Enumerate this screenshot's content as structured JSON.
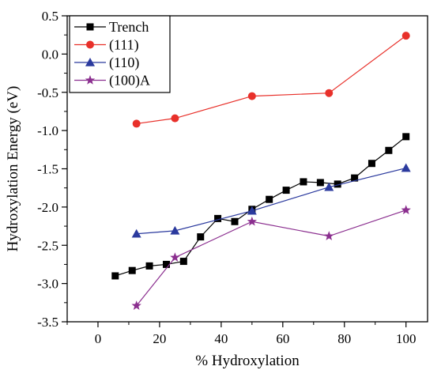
{
  "chart_data": {
    "type": "line",
    "title": "",
    "xlabel": "% Hydroxylation",
    "ylabel": "Hydroxylation Energy (eV)",
    "xlim": [
      -10,
      107
    ],
    "ylim": [
      -3.5,
      0.5
    ],
    "xticks": [
      0,
      20,
      40,
      60,
      80,
      100
    ],
    "yticks": [
      0.5,
      0.0,
      -0.5,
      -1.0,
      -1.5,
      -2.0,
      -2.5,
      -3.0,
      -3.5
    ],
    "ytick_labels": [
      "0.5",
      "0.0",
      "-0.5",
      "-1.0",
      "-1.5",
      "-2.0",
      "-2.5",
      "-3.0",
      "-3.5"
    ],
    "grid": false,
    "legend_position": "top-left",
    "series": [
      {
        "name": "Trench",
        "color": "#000000",
        "marker": "square",
        "x": [
          5.6,
          11.1,
          16.7,
          22.2,
          27.8,
          33.3,
          38.9,
          44.4,
          50.0,
          55.6,
          61.1,
          66.7,
          72.2,
          77.8,
          83.3,
          88.9,
          94.4,
          100.0
        ],
        "y": [
          -2.9,
          -2.83,
          -2.77,
          -2.75,
          -2.71,
          -2.39,
          -2.15,
          -2.19,
          -2.03,
          -1.9,
          -1.78,
          -1.67,
          -1.68,
          -1.7,
          -1.62,
          -1.43,
          -1.26,
          -1.08
        ]
      },
      {
        "name": "(111)",
        "color": "#e8302a",
        "marker": "circle",
        "x": [
          12.5,
          25.0,
          50.0,
          75.0,
          100.0
        ],
        "y": [
          -0.91,
          -0.84,
          -0.55,
          -0.51,
          0.24
        ]
      },
      {
        "name": "(110)",
        "color": "#2b3a9e",
        "marker": "triangle",
        "x": [
          12.5,
          25.0,
          50.0,
          75.0,
          100.0
        ],
        "y": [
          -2.35,
          -2.31,
          -2.05,
          -1.74,
          -1.49
        ]
      },
      {
        "name": "(100)A",
        "color": "#8b2f8f",
        "marker": "star",
        "x": [
          12.5,
          25.0,
          50.0,
          75.0,
          100.0
        ],
        "y": [
          -3.29,
          -2.66,
          -2.19,
          -2.38,
          -2.04
        ]
      }
    ]
  }
}
